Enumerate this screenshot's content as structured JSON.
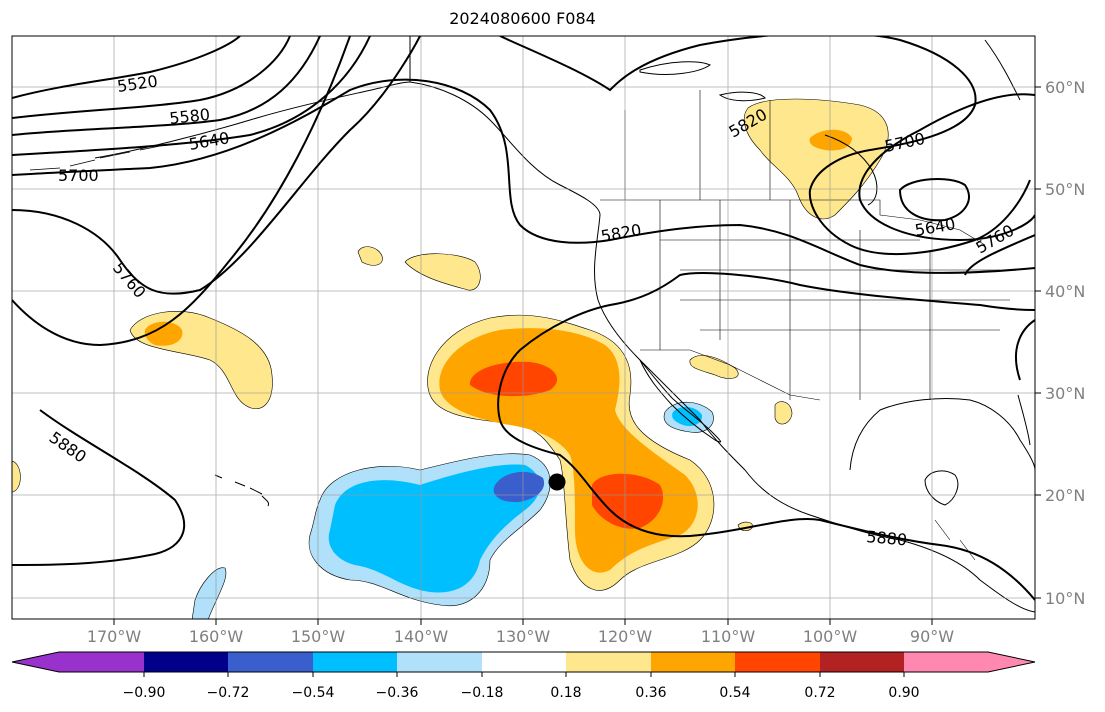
{
  "title": "2024080600 F084",
  "map": {
    "lat_labels": [
      "60°N",
      "50°N",
      "40°N",
      "30°N",
      "20°N",
      "10°N"
    ],
    "lon_labels": [
      "170°W",
      "160°W",
      "150°W",
      "140°W",
      "130°W",
      "120°W",
      "110°W",
      "100°W",
      "90°W"
    ],
    "contour_labels": [
      "5520",
      "5580",
      "5640",
      "5700",
      "5760",
      "5820",
      "5880",
      "5820",
      "5700",
      "5640",
      "5760",
      "5880"
    ],
    "fill_colors": {
      "pos_018": "#fee78c",
      "pos_036": "#ffa500",
      "pos_054": "#ff4500",
      "neg_018": "#b0e0fa",
      "neg_036": "#00bfff",
      "neg_054": "#3a5fcd"
    }
  },
  "colorbar": {
    "ticks": [
      "−0.90",
      "−0.72",
      "−0.54",
      "−0.36",
      "−0.18",
      "0.18",
      "0.36",
      "0.54",
      "0.72",
      "0.90"
    ],
    "colors": [
      "#9932cc",
      "#00008b",
      "#3a5fcd",
      "#00bfff",
      "#b0e0fa",
      "#ffffff",
      "#fee78c",
      "#ffa500",
      "#ff4500",
      "#b22222",
      "#ff88b0"
    ]
  }
}
